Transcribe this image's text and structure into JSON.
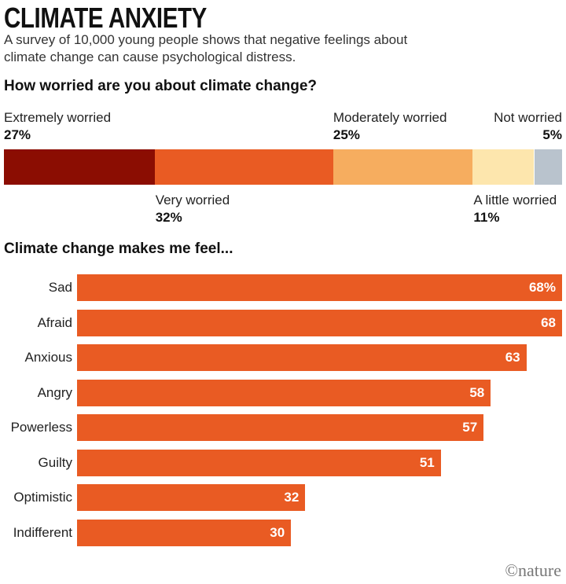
{
  "title": "CLIMATE ANXIETY",
  "subtitle": "A survey of 10,000 young people shows that negative feelings about climate change can cause psychological distress.",
  "credit": "©nature",
  "chart_data": [
    {
      "type": "stacked-bar",
      "title": "How worried are you about climate change?",
      "categories": [
        "Extremely worried",
        "Very worried",
        "Moderately worried",
        "A little worried",
        "Not worried"
      ],
      "values": [
        27,
        32,
        25,
        11,
        5
      ],
      "value_labels": [
        "27%",
        "32%",
        "25%",
        "11%",
        "5%"
      ],
      "colors": [
        "#8b0d02",
        "#e95b23",
        "#f6ad5f",
        "#fde6ad",
        "#b9c3cd"
      ]
    },
    {
      "type": "bar",
      "title": "Climate change makes me feel...",
      "categories": [
        "Sad",
        "Afraid",
        "Anxious",
        "Angry",
        "Powerless",
        "Guilty",
        "Optimistic",
        "Indifferent"
      ],
      "values": [
        68,
        68,
        63,
        58,
        57,
        51,
        32,
        30
      ],
      "value_labels": [
        "68%",
        "68",
        "63",
        "58",
        "57",
        "51",
        "32",
        "30"
      ],
      "color": "#e95b23"
    }
  ]
}
